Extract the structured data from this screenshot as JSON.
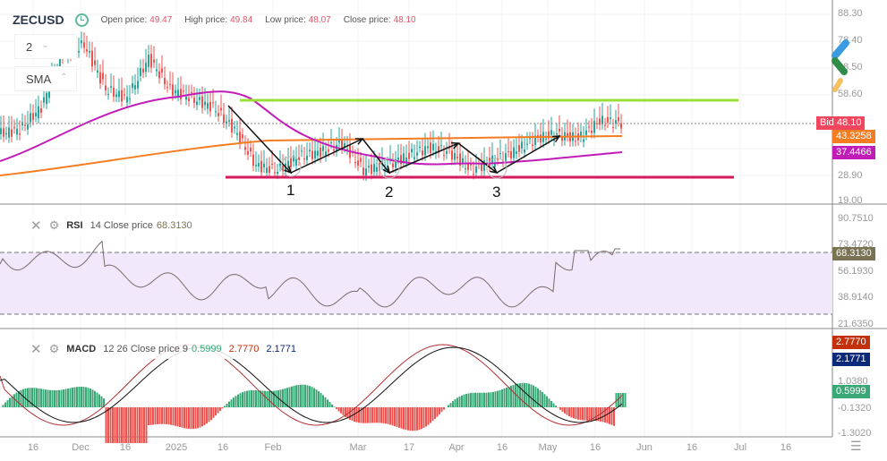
{
  "header": {
    "symbol": "ZECUSD",
    "open_label": "Open price:",
    "open": "49.47",
    "high_label": "High price:",
    "high": "49.84",
    "low_label": "Low price:",
    "low": "48.07",
    "close_label": "Close price:",
    "close": "48.10"
  },
  "controls": {
    "interval": "2",
    "indicator": "SMA"
  },
  "price_axis": [
    "88.30",
    "78.40",
    "68.50",
    "58.60",
    "28.90",
    "19.00"
  ],
  "price_tags": {
    "bid": "Bid 48.10",
    "sma_slow": "43.3258",
    "sma_fast": "37.4466"
  },
  "rsi": {
    "name": "RSI",
    "params": "14 Close price",
    "value": "68.3130",
    "axis": [
      "90.7510",
      "73.4720",
      "56.1930",
      "38.9140",
      "21.6350"
    ]
  },
  "macd": {
    "name": "MACD",
    "params": "12 26 Close price 9",
    "hist": "0.5999",
    "macd": "2.7770",
    "signal": "2.1771",
    "axis": [
      "1.0380",
      "-0.1320",
      "-1.3020"
    ]
  },
  "annotations": [
    "1",
    "2",
    "3"
  ],
  "time_axis": [
    "16",
    "Dec",
    "16",
    "2025",
    "16",
    "Feb",
    "Mar",
    "17",
    "Apr",
    "16",
    "May",
    "16",
    "Jun",
    "16",
    "Jul",
    "16"
  ],
  "colors": {
    "up": "#26a69a",
    "down": "#ef5350",
    "sma_slow": "#f57c20",
    "sma_fast": "#c21cb8",
    "resistance": "#9be03a",
    "support": "#d81b60",
    "rsi_band": "#f1e8fb",
    "bid": "#f0475e",
    "rsi_tag": "#7a7353",
    "macd_tag": "#c2310c",
    "signal_tag": "#0b2a7a",
    "hist_tag": "#3aa776"
  },
  "price_series": [
    44.1,
    45.7,
    54.0,
    73.8,
    77.1,
    60.6,
    57.3,
    72.1,
    60.6,
    57.3,
    54.0,
    45.7,
    32.5,
    30.8,
    35.8,
    37.5,
    40.8,
    30.8,
    32.5,
    35.8,
    39.1,
    37.5,
    30.8,
    34.2,
    37.5,
    42.4,
    44.1,
    42.4,
    49.0,
    48.1
  ]
}
